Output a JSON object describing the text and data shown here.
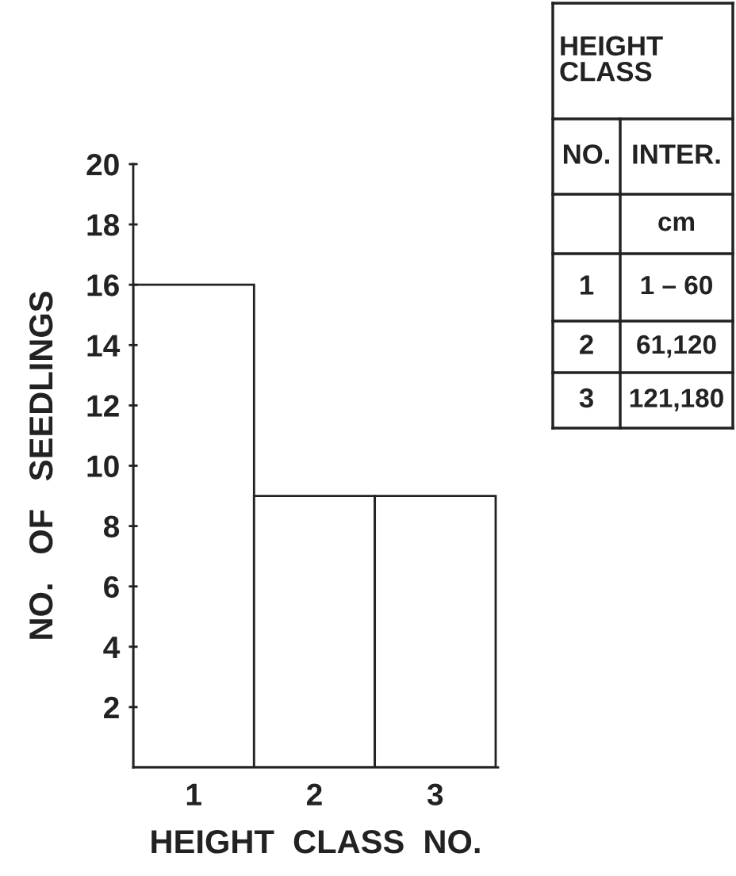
{
  "chart_data": {
    "type": "bar",
    "categories": [
      "1",
      "2",
      "3"
    ],
    "values": [
      16,
      9,
      9
    ],
    "color": "#ffffff",
    "xlabel": "HEIGHT  CLASS  NO.",
    "ylabel": "NO.   OF   SEEDLINGS",
    "ylim": [
      0,
      20
    ],
    "yticks": [
      2,
      4,
      6,
      8,
      10,
      12,
      14,
      16,
      18,
      20
    ],
    "grid": false,
    "legend": false,
    "annotations": [
      "HEIGHT\nCLASS",
      "NO.",
      "INTER.",
      "cm",
      "1",
      "1 – 60",
      "2",
      "61,120",
      "3",
      "121,180"
    ]
  }
}
